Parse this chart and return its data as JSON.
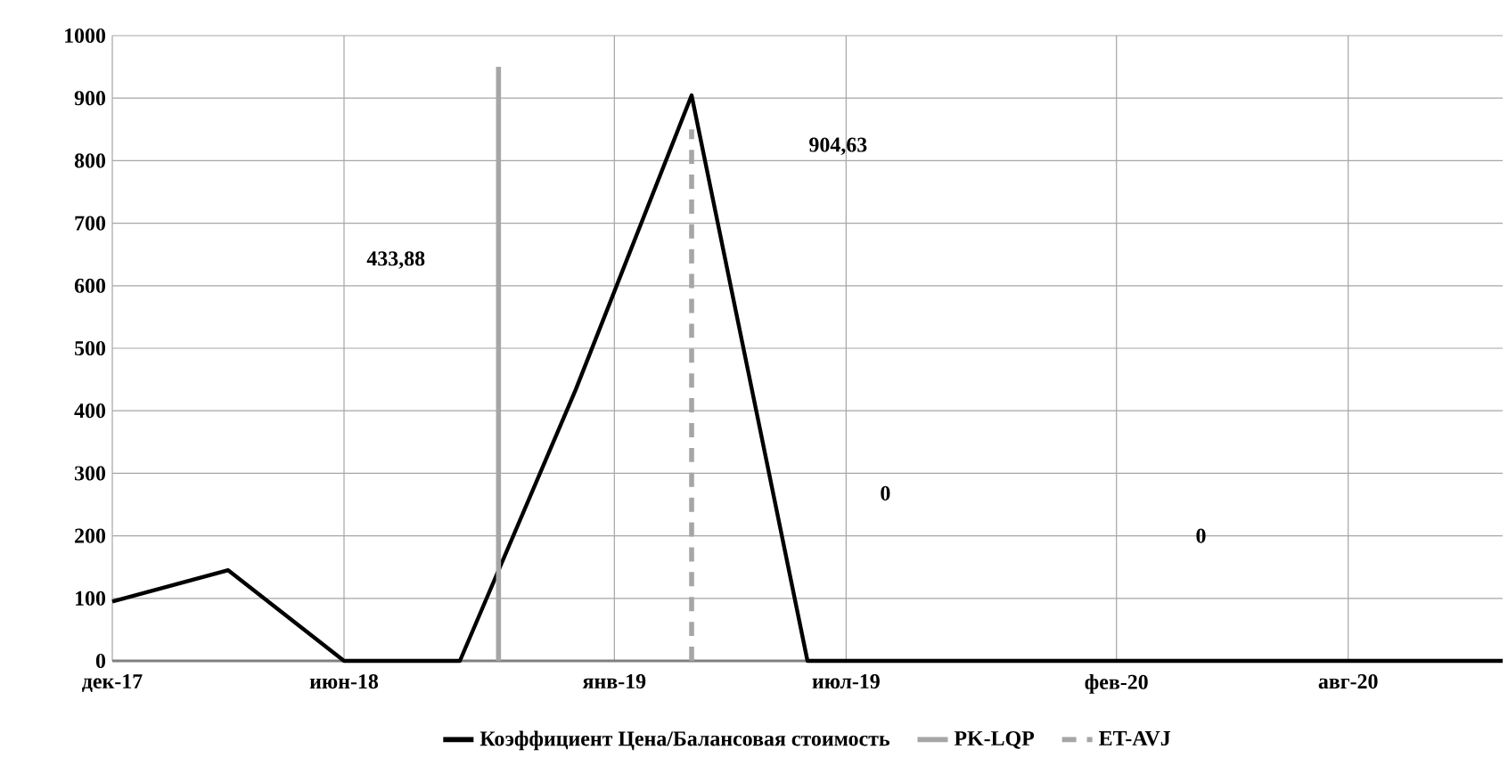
{
  "chart_data": {
    "type": "line",
    "x": [
      "2017-12",
      "2018-03",
      "2018-06",
      "2018-09",
      "2018-12",
      "2019-03",
      "2019-06",
      "2019-09",
      "2019-12",
      "2020-03",
      "2020-06",
      "2020-09",
      "2020-12"
    ],
    "series": [
      {
        "name": "Коэффициент Цена/Балансовая стоимость",
        "color": "#000000",
        "values": [
          95,
          145,
          0,
          0,
          433.88,
          904.63,
          0,
          0,
          0,
          0,
          0,
          0,
          0
        ]
      },
      {
        "name": "PK-LQP",
        "color": "#a6a6a6",
        "type": "line",
        "line_style": "solid",
        "x": [
          "2018-10",
          "2018-10"
        ],
        "values": [
          0,
          950
        ]
      },
      {
        "name": "ET-AVJ",
        "color": "#a6a6a6",
        "type": "line",
        "line_style": "dashed",
        "x": [
          "2019-03",
          "2019-03"
        ],
        "values": [
          0,
          850
        ]
      }
    ],
    "xlim": [
      "2017-12",
      "2020-12"
    ],
    "xticks": [
      {
        "value": "2017-12",
        "label": "дек-17"
      },
      {
        "value": "2018-06",
        "label": "июн-18"
      },
      {
        "value": "2019-01",
        "label": "янв-19"
      },
      {
        "value": "2019-07",
        "label": "июл-19"
      },
      {
        "value": "2020-02",
        "label": "фев-20"
      },
      {
        "value": "2020-08",
        "label": "авг-20"
      }
    ],
    "ylim": [
      0,
      1000
    ],
    "yticks": [
      0,
      100,
      200,
      300,
      400,
      500,
      600,
      700,
      800,
      900,
      1000
    ],
    "annotations": [
      "433,88",
      "904,63",
      "0",
      "0"
    ],
    "grid": true,
    "legend": "bottom",
    "marker": "none"
  }
}
